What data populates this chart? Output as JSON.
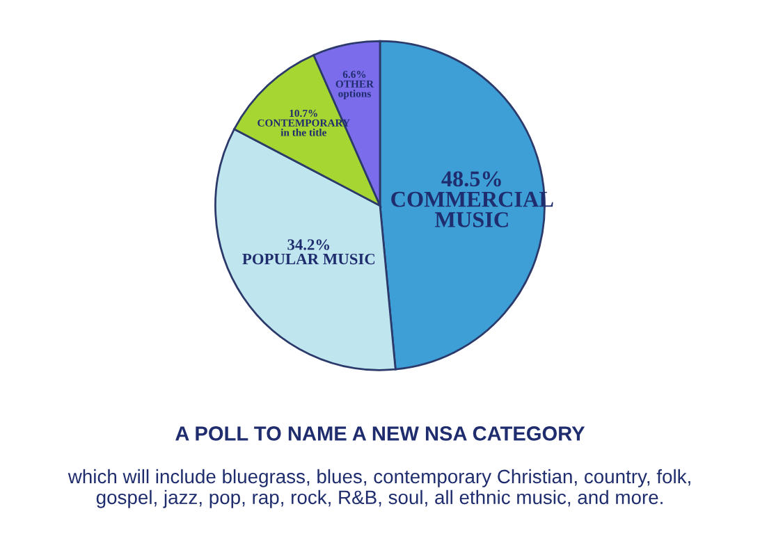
{
  "chart_data": {
    "type": "pie",
    "title": "A POLL TO NAME A NEW NSA CATEGORY",
    "subtitle": "which will include bluegrass, blues, contemporary Christian, country, folk,\ngospel, jazz, pop, rap, rock, R&B, soul, all ethnic music, and more.",
    "categories": [
      "COMMERCIAL\nMUSIC",
      "POPULAR MUSIC",
      "CONTEMPORARY\nin the title",
      "OTHER\noptions"
    ],
    "values": [
      48.5,
      34.2,
      10.7,
      6.6
    ],
    "colors": [
      "#3d9fd6",
      "#bfe6ee",
      "#a6d631",
      "#7b6cec"
    ],
    "value_labels": [
      "48.5%",
      "34.2%",
      "10.7%",
      "6.6%"
    ]
  }
}
